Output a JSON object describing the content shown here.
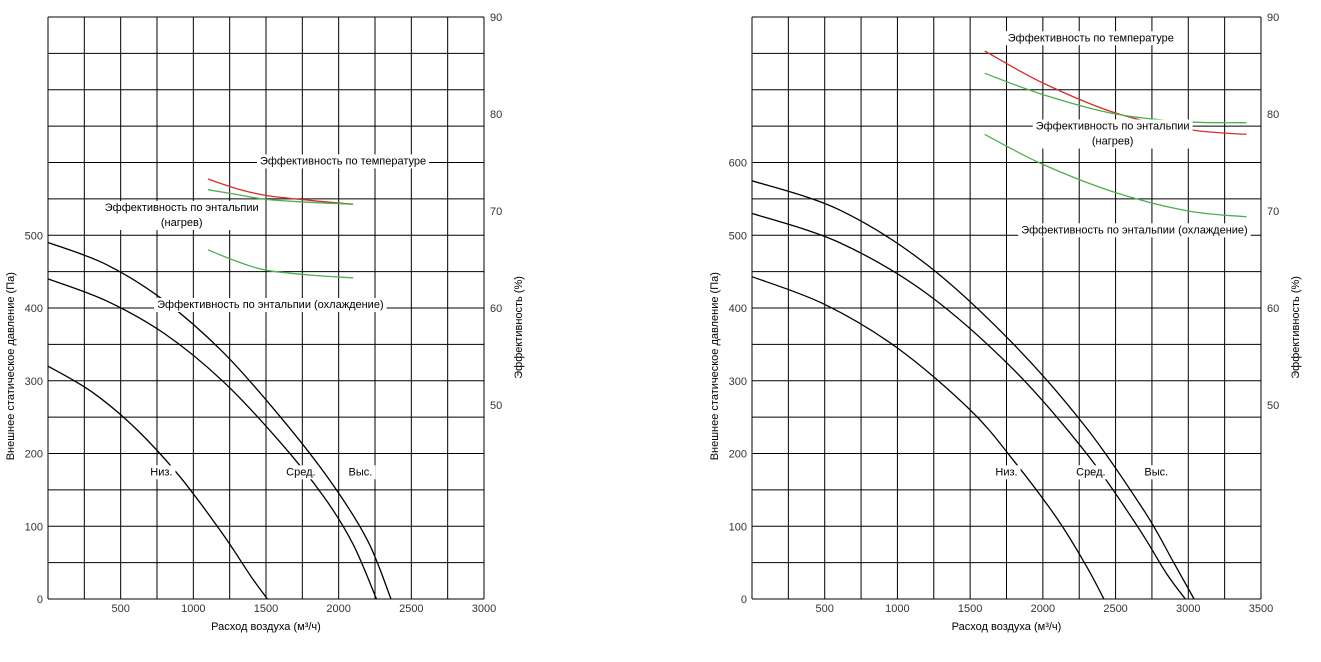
{
  "colors": {
    "grid": "#000000",
    "pressure_curve": "#000000",
    "temperature": "#d62f2f",
    "enthalpy": "#4caf50"
  },
  "chart_data": [
    {
      "type": "line",
      "xlabel": "Расход воздуха (м³/ч)",
      "ylabel": "Внешнее статическое давление (Па)",
      "y2label": "Эффективность (%)",
      "xlim": [
        0,
        3000
      ],
      "ylim": [
        0,
        800
      ],
      "y2lim": [
        30,
        90
      ],
      "xticks": [
        "500",
        "1000",
        "1500",
        "2000",
        "2500",
        "3000"
      ],
      "yticks": [
        "0",
        "100",
        "200",
        "300",
        "400",
        "500"
      ],
      "y2ticks": [
        "50",
        "60",
        "70",
        "80",
        "90"
      ],
      "grid": true,
      "series": [
        {
          "name": "Низ.",
          "axis": "left",
          "color": "#000000",
          "points": [
            [
              0,
              320
            ],
            [
              300,
              285
            ],
            [
              600,
              235
            ],
            [
              900,
              170
            ],
            [
              1200,
              90
            ],
            [
              1400,
              30
            ],
            [
              1510,
              0
            ]
          ]
        },
        {
          "name": "Сред.",
          "axis": "left",
          "color": "#000000",
          "points": [
            [
              0,
              440
            ],
            [
              400,
              410
            ],
            [
              800,
              365
            ],
            [
              1200,
              300
            ],
            [
              1600,
              215
            ],
            [
              1900,
              140
            ],
            [
              2100,
              75
            ],
            [
              2260,
              0
            ]
          ]
        },
        {
          "name": "Выс.",
          "axis": "left",
          "color": "#000000",
          "points": [
            [
              0,
              490
            ],
            [
              400,
              460
            ],
            [
              800,
              410
            ],
            [
              1200,
              340
            ],
            [
              1600,
              250
            ],
            [
              1950,
              160
            ],
            [
              2200,
              80
            ],
            [
              2360,
              0
            ]
          ]
        },
        {
          "name": "Эффективность по температуре",
          "axis": "right",
          "color": "#d62f2f",
          "points": [
            [
              1100,
              73.3
            ],
            [
              1300,
              72.3
            ],
            [
              1500,
              71.6
            ],
            [
              1800,
              71.1
            ],
            [
              2100,
              70.7
            ]
          ]
        },
        {
          "name": "Эффективность по энтальпии (нагрев)",
          "axis": "right",
          "color": "#4caf50",
          "points": [
            [
              1100,
              72.2
            ],
            [
              1300,
              71.7
            ],
            [
              1500,
              71.2
            ],
            [
              1800,
              70.9
            ],
            [
              2100,
              70.7
            ]
          ]
        },
        {
          "name": "Эффективность по энтальпии (охлаждение)",
          "axis": "right",
          "color": "#4caf50",
          "points": [
            [
              1100,
              66
            ],
            [
              1300,
              64.8
            ],
            [
              1500,
              63.9
            ],
            [
              1800,
              63.4
            ],
            [
              2100,
              63.1
            ]
          ]
        }
      ],
      "annotations": [
        {
          "lines": [
            "Эффективность по температуре"
          ],
          "x": 2030,
          "y2": 74.8,
          "anchor": "middle"
        },
        {
          "lines": [
            "Эффективность по энтальпии",
            "(нагрев)"
          ],
          "x": 920,
          "y2": 70,
          "anchor": "middle"
        },
        {
          "lines": [
            "Эффективность по энтальпии (охлаждение)"
          ],
          "x": 1530,
          "y2": 60,
          "anchor": "middle"
        },
        {
          "lines": [
            "Низ."
          ],
          "x": 780,
          "y": 170,
          "anchor": "middle"
        },
        {
          "lines": [
            "Сред."
          ],
          "x": 1740,
          "y": 170,
          "anchor": "middle"
        },
        {
          "lines": [
            "Выс."
          ],
          "x": 2150,
          "y": 170,
          "anchor": "middle"
        }
      ]
    },
    {
      "type": "line",
      "xlabel": "Расход воздуха (м³/ч)",
      "ylabel": "Внешнее статическое давление (Па)",
      "y2label": "Эффективность (%)",
      "xlim": [
        0,
        3500
      ],
      "ylim": [
        0,
        800
      ],
      "y2lim": [
        30,
        90
      ],
      "xticks": [
        "500",
        "1000",
        "1500",
        "2000",
        "2500",
        "3000",
        "3500"
      ],
      "yticks": [
        "0",
        "100",
        "200",
        "300",
        "400",
        "500",
        "600"
      ],
      "y2ticks": [
        "50",
        "60",
        "70",
        "80",
        "90"
      ],
      "grid": true,
      "series": [
        {
          "name": "Низ.",
          "axis": "left",
          "color": "#000000",
          "points": [
            [
              0,
              443
            ],
            [
              500,
              405
            ],
            [
              1000,
              345
            ],
            [
              1500,
              260
            ],
            [
              1800,
              190
            ],
            [
              2100,
              110
            ],
            [
              2300,
              45
            ],
            [
              2420,
              0
            ]
          ]
        },
        {
          "name": "Сред.",
          "axis": "left",
          "color": "#000000",
          "points": [
            [
              0,
              530
            ],
            [
              600,
              490
            ],
            [
              1200,
              420
            ],
            [
              1800,
              315
            ],
            [
              2300,
              200
            ],
            [
              2650,
              100
            ],
            [
              2850,
              35
            ],
            [
              2980,
              0
            ]
          ]
        },
        {
          "name": "Выс.",
          "axis": "left",
          "color": "#000000",
          "points": [
            [
              0,
              575
            ],
            [
              600,
              535
            ],
            [
              1200,
              460
            ],
            [
              1800,
              350
            ],
            [
              2300,
              235
            ],
            [
              2700,
              120
            ],
            [
              2900,
              50
            ],
            [
              3040,
              0
            ]
          ]
        },
        {
          "name": "Эффективность по температуре",
          "axis": "right",
          "color": "#d62f2f",
          "points": [
            [
              1600,
              86.5
            ],
            [
              2000,
              83.2
            ],
            [
              2500,
              80.1
            ],
            [
              3000,
              78.4
            ],
            [
              3400,
              77.9
            ]
          ]
        },
        {
          "name": "Эффективность по энтальпии (нагрев)",
          "axis": "right",
          "color": "#4caf50",
          "points": [
            [
              1600,
              84.2
            ],
            [
              2000,
              82
            ],
            [
              2500,
              80
            ],
            [
              3000,
              79.2
            ],
            [
              3400,
              79.1
            ]
          ]
        },
        {
          "name": "Эффективность по энтальпии (охлаждение)",
          "axis": "right",
          "color": "#4caf50",
          "points": [
            [
              1600,
              77.9
            ],
            [
              2000,
              74.8
            ],
            [
              2500,
              71.9
            ],
            [
              3000,
              70
            ],
            [
              3400,
              69.4
            ]
          ]
        }
      ],
      "annotations": [
        {
          "lines": [
            "Эффективность по температуре"
          ],
          "x": 2330,
          "y2": 87.5,
          "anchor": "middle"
        },
        {
          "lines": [
            "Эффективность по энтальпии",
            "(нагрев)"
          ],
          "x": 2480,
          "y2": 78.4,
          "anchor": "middle"
        },
        {
          "lines": [
            "Эффективность по энтальпии (охлаждение)"
          ],
          "x": 2630,
          "y2": 67.7,
          "anchor": "middle"
        },
        {
          "lines": [
            "Низ."
          ],
          "x": 1750,
          "y": 170,
          "anchor": "middle"
        },
        {
          "lines": [
            "Сред."
          ],
          "x": 2330,
          "y": 170,
          "anchor": "middle"
        },
        {
          "lines": [
            "Выс."
          ],
          "x": 2780,
          "y": 170,
          "anchor": "middle"
        }
      ]
    }
  ]
}
